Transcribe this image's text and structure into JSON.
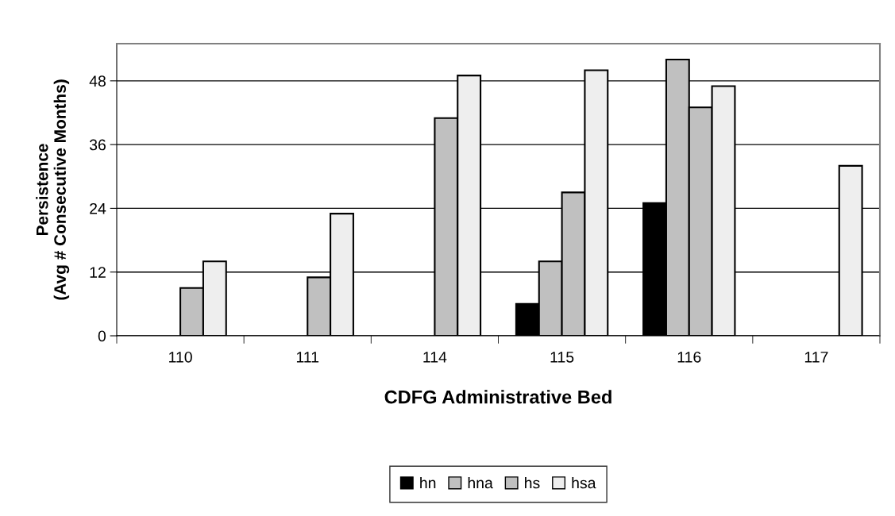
{
  "chart_data": {
    "type": "bar",
    "xlabel": "CDFG Administrative Bed",
    "ylabel": "Persistence\n(Avg # Consecutive Months)",
    "categories": [
      "110",
      "111",
      "114",
      "115",
      "116",
      "117"
    ],
    "series": [
      {
        "name": "hn",
        "color": "#000000",
        "values": [
          null,
          null,
          null,
          6,
          25,
          null
        ]
      },
      {
        "name": "hna",
        "color": "#c0c0c0",
        "values": [
          null,
          null,
          null,
          14,
          52,
          null
        ]
      },
      {
        "name": "hs",
        "color": "#c0c0c0",
        "values": [
          9,
          11,
          41,
          27,
          43,
          null
        ]
      },
      {
        "name": "hsa",
        "color": "#eeeeee",
        "values": [
          14,
          23,
          49,
          50,
          47,
          32
        ]
      }
    ],
    "ylim": [
      0,
      55
    ],
    "yticks": [
      0,
      12,
      24,
      36,
      48
    ],
    "grid": "y",
    "legend": "bottom"
  }
}
